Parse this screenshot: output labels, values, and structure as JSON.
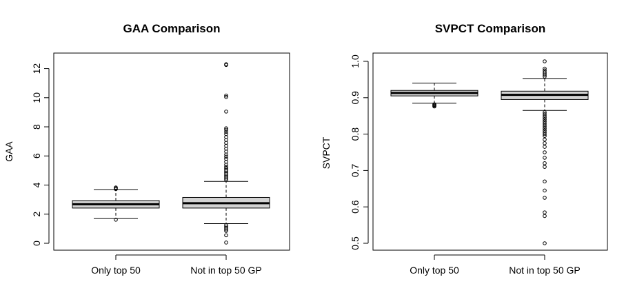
{
  "chart_data": [
    {
      "type": "box",
      "title": "GAA Comparison",
      "xlabel": "",
      "ylabel": "GAA",
      "ylim": [
        0,
        12.5
      ],
      "yticks": [
        0,
        2,
        4,
        6,
        8,
        10,
        12
      ],
      "categories": [
        "Only top 50",
        "Not in top 50 GP"
      ],
      "boxes": [
        {
          "category": "Only top 50",
          "whisker_low": 1.7,
          "q1": 2.42,
          "median": 2.68,
          "q3": 2.93,
          "whisker_high": 3.68,
          "fill": "#d3d3d3",
          "outliers": [
            1.62,
            3.72,
            3.78,
            3.83
          ]
        },
        {
          "category": "Not in top 50 GP",
          "whisker_low": 1.35,
          "q1": 2.42,
          "median": 2.75,
          "q3": 3.15,
          "whisker_high": 4.25,
          "fill": "#d3d3d3",
          "outliers": [
            0.05,
            0.55,
            0.85,
            0.95,
            1.05,
            1.15,
            1.25,
            4.35,
            4.45,
            4.55,
            4.65,
            4.75,
            4.85,
            4.95,
            5.05,
            5.15,
            5.25,
            5.4,
            5.6,
            5.8,
            5.95,
            6.1,
            6.3,
            6.5,
            6.7,
            6.9,
            7.1,
            7.3,
            7.5,
            7.65,
            7.8,
            7.9,
            9.05,
            10.05,
            10.15,
            12.25,
            12.3
          ]
        }
      ]
    },
    {
      "type": "box",
      "title": "SVPCT Comparison",
      "xlabel": "",
      "ylabel": "SVPCT",
      "ylim": [
        0.5,
        1.0
      ],
      "yticks": [
        0.5,
        0.6,
        0.7,
        0.8,
        0.9,
        1.0
      ],
      "ytick_labels": [
        "0.5",
        "0.6",
        "0.7",
        "0.8",
        "0.9",
        "1.0"
      ],
      "categories": [
        "Only top 50",
        "Not in top 50 GP"
      ],
      "boxes": [
        {
          "category": "Only top 50",
          "whisker_low": 0.885,
          "q1": 0.905,
          "median": 0.913,
          "q3": 0.92,
          "whisker_high": 0.94,
          "fill": "#d3d3d3",
          "outliers": [
            0.876,
            0.878,
            0.88,
            0.882
          ]
        },
        {
          "category": "Not in top 50 GP",
          "whisker_low": 0.865,
          "q1": 0.895,
          "median": 0.908,
          "q3": 0.918,
          "whisker_high": 0.953,
          "fill": "#d3d3d3",
          "outliers": [
            0.5,
            0.575,
            0.585,
            0.625,
            0.645,
            0.67,
            0.71,
            0.72,
            0.735,
            0.75,
            0.765,
            0.775,
            0.785,
            0.795,
            0.8,
            0.805,
            0.81,
            0.815,
            0.82,
            0.825,
            0.83,
            0.835,
            0.84,
            0.845,
            0.85,
            0.855,
            0.86,
            0.958,
            0.962,
            0.966,
            0.97,
            0.975,
            0.98,
            1.0
          ]
        }
      ]
    }
  ]
}
